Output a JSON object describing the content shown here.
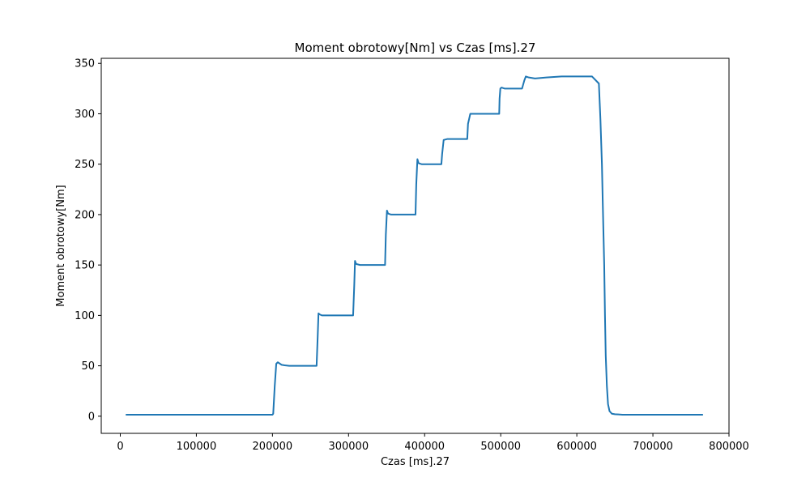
{
  "chart_data": {
    "type": "line",
    "title": "Moment obrotowy[Nm] vs Czas [ms].27",
    "xlabel": "Czas [ms].27",
    "ylabel": "Moment obrotowy[Nm]",
    "xlim": [
      -25000,
      800000
    ],
    "ylim": [
      -17,
      355
    ],
    "xticks": [
      0,
      100000,
      200000,
      300000,
      400000,
      500000,
      600000,
      700000,
      800000
    ],
    "yticks": [
      0,
      50,
      100,
      150,
      200,
      250,
      300,
      350
    ],
    "grid": false,
    "line_color": "#1f77b4",
    "series": [
      {
        "x": [
          8000,
          100000,
          200000,
          201000,
          203000,
          205000,
          207000,
          209000,
          212000,
          216000,
          222000,
          230000,
          258000,
          259500,
          260500,
          262000,
          265000,
          272000,
          300000,
          306000,
          307500,
          308500,
          310000,
          315000,
          348000,
          349000,
          350500,
          352000,
          356000,
          388000,
          389000,
          390500,
          392000,
          396000,
          422000,
          423000,
          425000,
          430000,
          456000,
          457000,
          460000,
          498000,
          498500,
          499500,
          501000,
          505000,
          528000,
          531000,
          533000,
          537000,
          545000,
          560000,
          580000,
          600000,
          620000,
          629000,
          631000,
          633000,
          634000,
          635000,
          636000,
          637000,
          638000,
          639500,
          641000,
          643000,
          646000,
          650000,
          660000,
          700000,
          765000
        ],
        "y": [
          1.5,
          1.5,
          1.5,
          2.5,
          30,
          52,
          53.5,
          52.5,
          51,
          50.5,
          50,
          50,
          50,
          80,
          102,
          101,
          100,
          100,
          100,
          100,
          130,
          154,
          151,
          150,
          150,
          180,
          204,
          201,
          200,
          200,
          230,
          255,
          251,
          250,
          250,
          260,
          274,
          275,
          275,
          290,
          300,
          300,
          315,
          325,
          326,
          325,
          325,
          333,
          337,
          336,
          335,
          336,
          337,
          337,
          337,
          330,
          295,
          250,
          215,
          182,
          150,
          100,
          60,
          30,
          12,
          5,
          2.5,
          2,
          1.5,
          1.5,
          1.5
        ]
      }
    ]
  }
}
